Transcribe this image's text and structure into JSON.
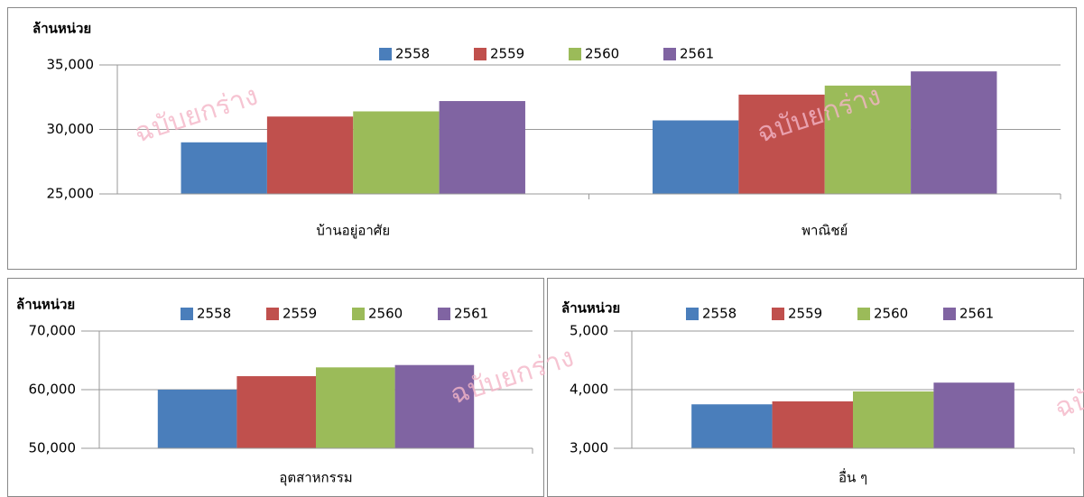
{
  "watermark": "ฉบับยกร่าง",
  "chart_data": [
    {
      "type": "bar",
      "y_label": "ล้านหน่วย",
      "categories": [
        "บ้านอยู่อาศัย",
        "พาณิชย์"
      ],
      "series": [
        {
          "name": "2558",
          "color": "#4a7ebb",
          "values": [
            29000,
            30700
          ]
        },
        {
          "name": "2559",
          "color": "#c0504d",
          "values": [
            31000,
            32700
          ]
        },
        {
          "name": "2560",
          "color": "#9bbb59",
          "values": [
            31400,
            33400
          ]
        },
        {
          "name": "2561",
          "color": "#8064a2",
          "values": [
            32200,
            34500
          ]
        }
      ],
      "ylim": [
        25000,
        35000
      ],
      "yticks": [
        {
          "value": 25000,
          "label": "25,000"
        },
        {
          "value": 30000,
          "label": "30,000"
        },
        {
          "value": 35000,
          "label": "35,000"
        }
      ],
      "grid": true
    },
    {
      "type": "bar",
      "y_label": "ล้านหน่วย",
      "categories": [
        "อุตสาหกรรม"
      ],
      "series": [
        {
          "name": "2558",
          "color": "#4a7ebb",
          "values": [
            60000
          ]
        },
        {
          "name": "2559",
          "color": "#c0504d",
          "values": [
            62300
          ]
        },
        {
          "name": "2560",
          "color": "#9bbb59",
          "values": [
            63800
          ]
        },
        {
          "name": "2561",
          "color": "#8064a2",
          "values": [
            64200
          ]
        }
      ],
      "ylim": [
        50000,
        70000
      ],
      "yticks": [
        {
          "value": 50000,
          "label": "50,000"
        },
        {
          "value": 60000,
          "label": "60,000"
        },
        {
          "value": 70000,
          "label": "70,000"
        }
      ],
      "grid": true
    },
    {
      "type": "bar",
      "y_label": "ล้านหน่วย",
      "categories": [
        "อื่น ๆ"
      ],
      "series": [
        {
          "name": "2558",
          "color": "#4a7ebb",
          "values": [
            3750
          ]
        },
        {
          "name": "2559",
          "color": "#c0504d",
          "values": [
            3800
          ]
        },
        {
          "name": "2560",
          "color": "#9bbb59",
          "values": [
            3970
          ]
        },
        {
          "name": "2561",
          "color": "#8064a2",
          "values": [
            4120
          ]
        }
      ],
      "ylim": [
        3000,
        5000
      ],
      "yticks": [
        {
          "value": 3000,
          "label": "3,000"
        },
        {
          "value": 4000,
          "label": "4,000"
        },
        {
          "value": 5000,
          "label": "5,000"
        }
      ],
      "grid": true
    }
  ]
}
